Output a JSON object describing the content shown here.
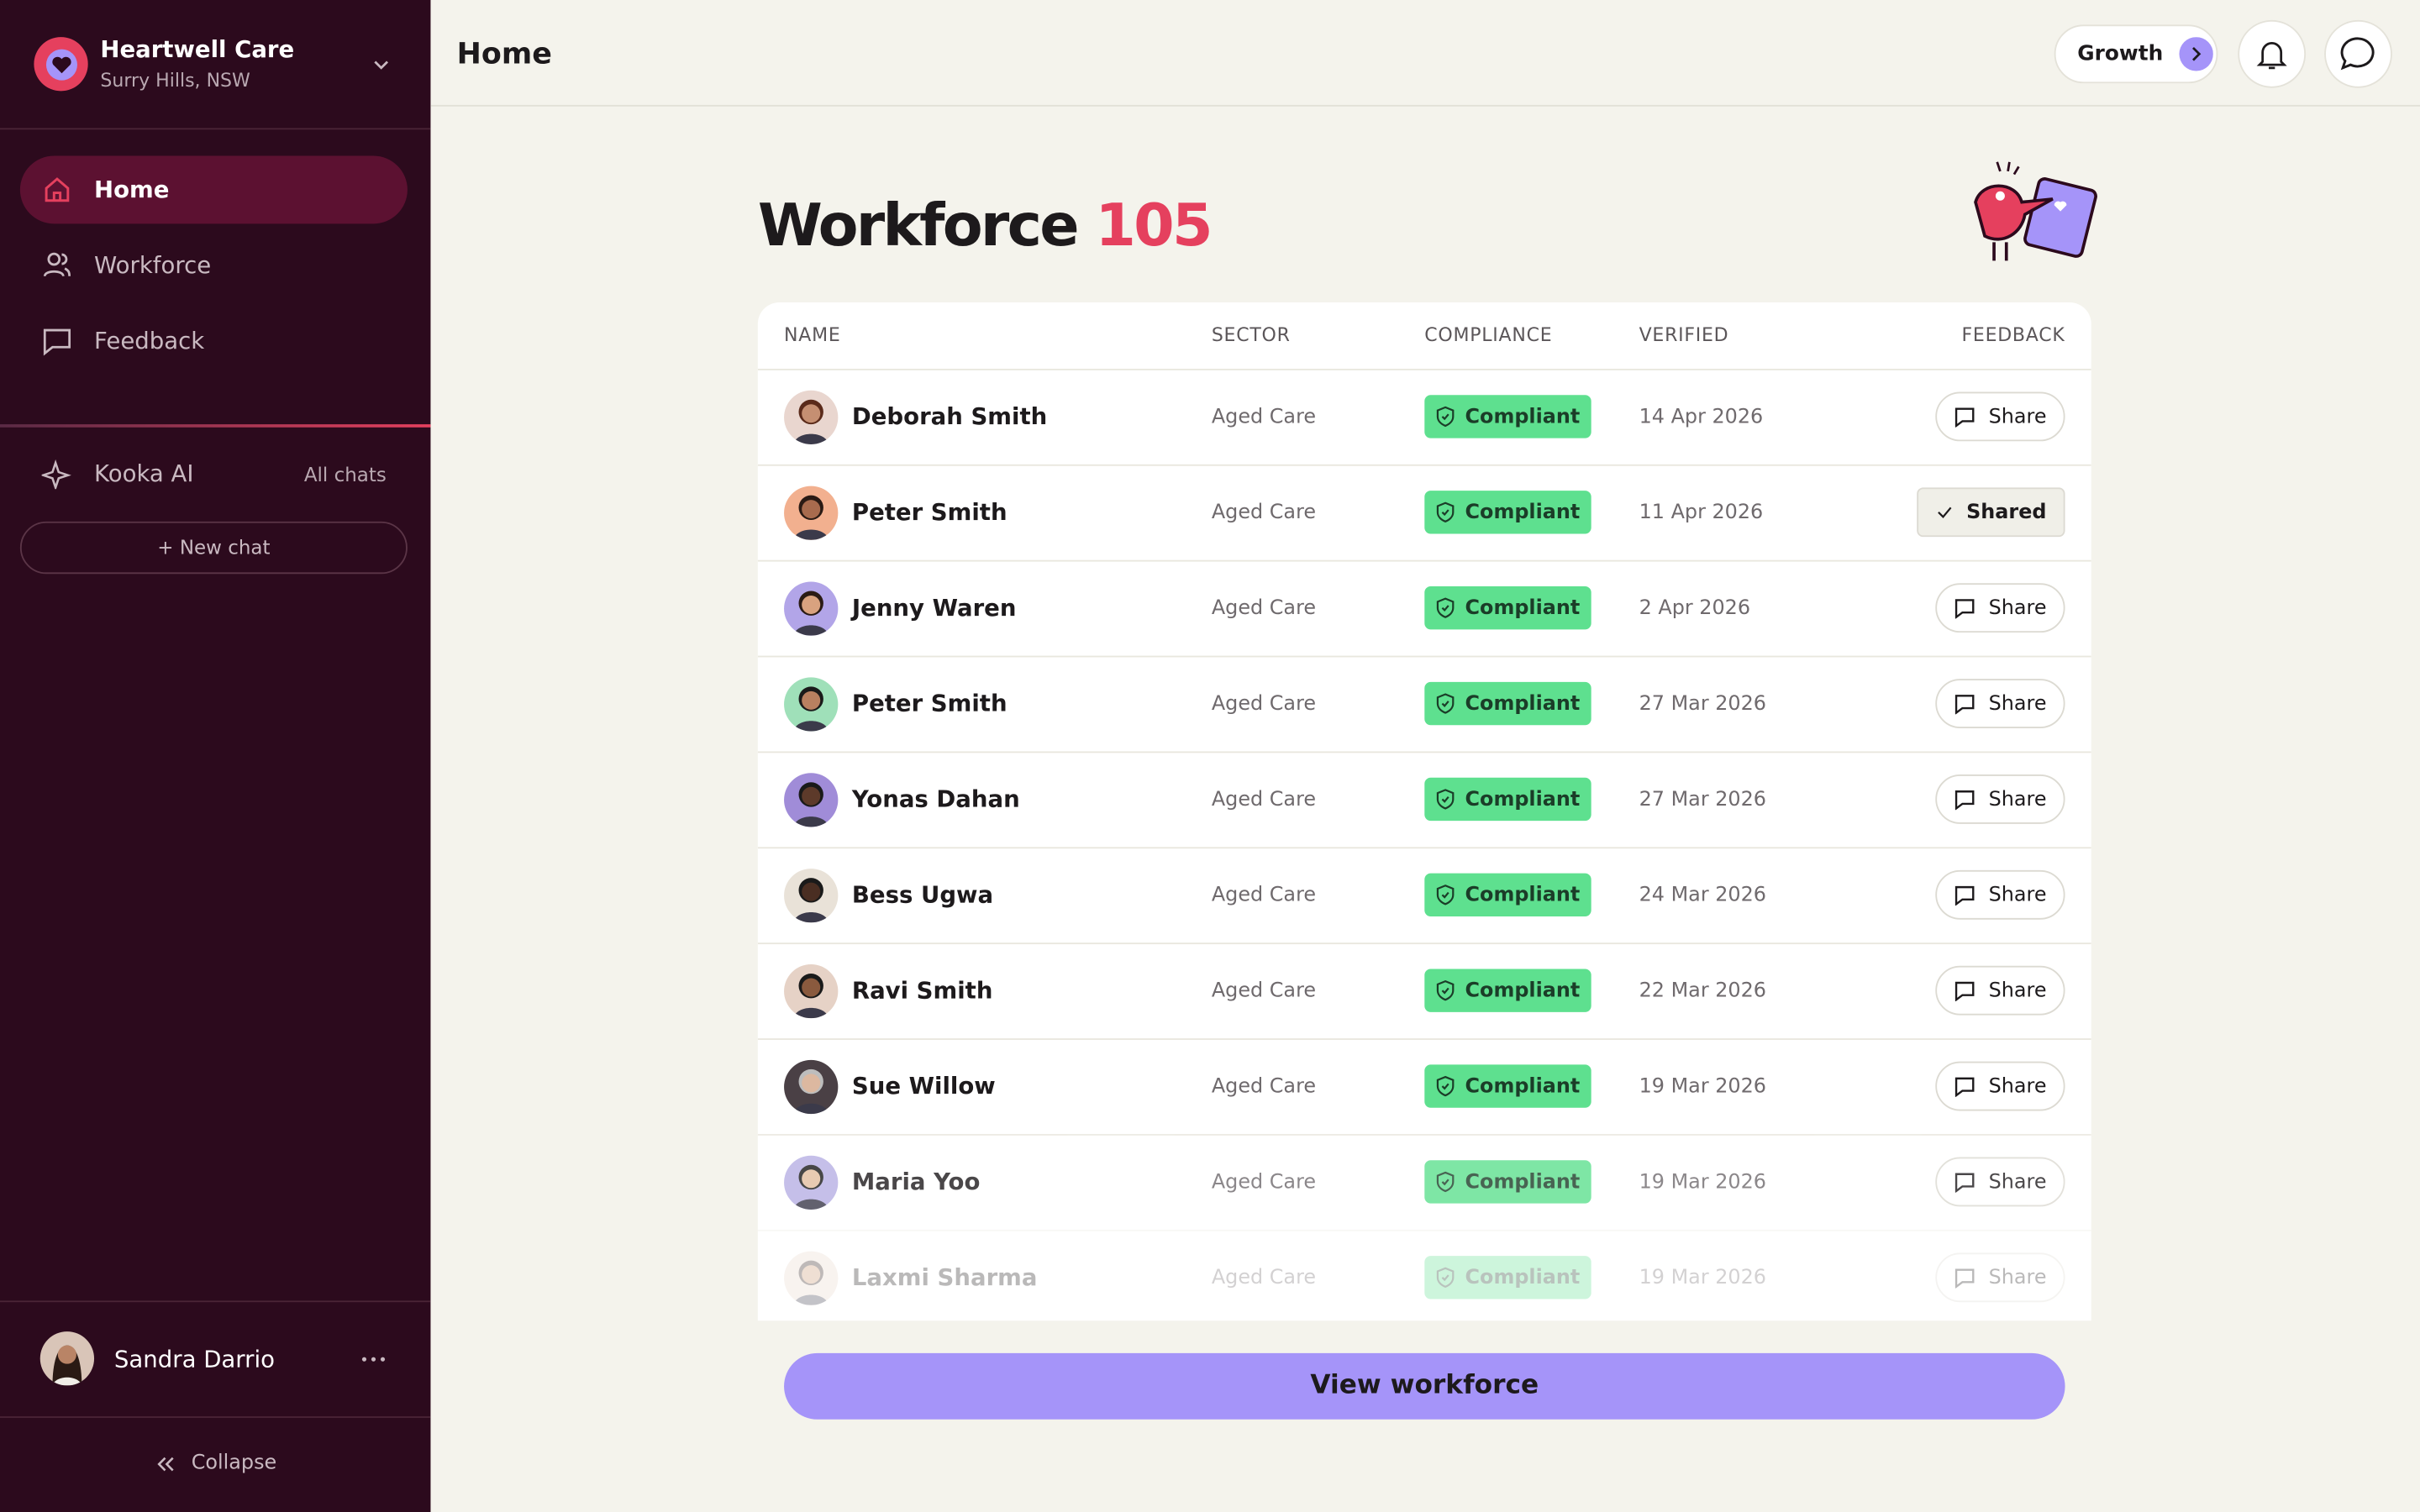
{
  "sidebar": {
    "org_name": "Heartwell Care",
    "org_location": "Surry Hills, NSW",
    "nav": [
      "Home",
      "Workforce",
      "Feedback"
    ],
    "ai_label": "Kooka AI",
    "all_chats": "All chats",
    "new_chat": "+ New chat",
    "user_name": "Sandra Darrio",
    "collapse": "Collapse"
  },
  "header": {
    "title": "Home",
    "plan": "Growth"
  },
  "main": {
    "title": "Workforce",
    "count": "105",
    "table": {
      "columns": [
        "NAME",
        "SECTOR",
        "COMPLIANCE",
        "VERIFIED",
        "FEEDBACK"
      ],
      "rows": [
        [
          "Deborah Smith",
          "Aged Care",
          "Compliant",
          "14 Apr 2026",
          "Share"
        ],
        [
          "Peter Smith",
          "Aged Care",
          "Compliant",
          "11 Apr 2026",
          "Shared"
        ],
        [
          "Jenny Waren",
          "Aged Care",
          "Compliant",
          "2 Apr 2026",
          "Share"
        ],
        [
          "Peter Smith",
          "Aged Care",
          "Compliant",
          "27 Mar 2026",
          "Share"
        ],
        [
          "Yonas Dahan",
          "Aged Care",
          "Compliant",
          "27 Mar 2026",
          "Share"
        ],
        [
          "Bess Ugwa",
          "Aged Care",
          "Compliant",
          "24 Mar 2026",
          "Share"
        ],
        [
          "Ravi Smith",
          "Aged Care",
          "Compliant",
          "22 Mar 2026",
          "Share"
        ],
        [
          "Sue Willow",
          "Aged Care",
          "Compliant",
          "19 Mar 2026",
          "Share"
        ],
        [
          "Maria Yoo",
          "Aged Care",
          "Compliant",
          "19 Mar 2026",
          "Share"
        ],
        [
          "Laxmi Sharma",
          "Aged Care",
          "Compliant",
          "19 Mar 2026",
          "Share"
        ]
      ]
    },
    "button": "View workforce"
  }
}
